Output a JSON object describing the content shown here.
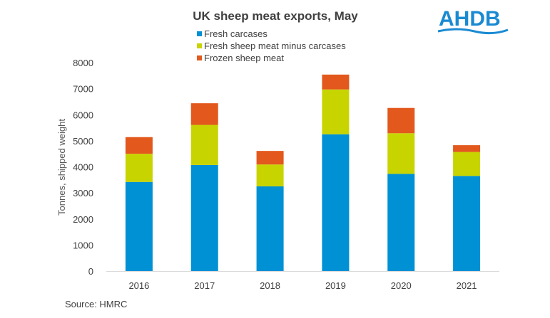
{
  "chart_data": {
    "type": "bar",
    "stacked": true,
    "title": "UK sheep meat exports, May",
    "xlabel": "",
    "ylabel": "Tonnes, shipped weight",
    "ylim": [
      0,
      8000
    ],
    "yticks": [
      0,
      1000,
      2000,
      3000,
      4000,
      5000,
      6000,
      7000,
      8000
    ],
    "grid": false,
    "legend": "top-center",
    "categories": [
      "2016",
      "2017",
      "2018",
      "2019",
      "2020",
      "2021"
    ],
    "series": [
      {
        "name": "Fresh carcases",
        "color": "#0090d4",
        "values": [
          3420,
          4070,
          3250,
          5250,
          3730,
          3650
        ]
      },
      {
        "name": "Fresh sheep meat minus carcases",
        "color": "#c8d400",
        "values": [
          1080,
          1540,
          840,
          1720,
          1560,
          920
        ]
      },
      {
        "name": "Frozen sheep meat",
        "color": "#e2581d",
        "values": [
          640,
          830,
          520,
          570,
          970,
          260
        ]
      }
    ]
  },
  "source": "Source: HMRC",
  "logo": {
    "text": "AHDB",
    "color": "#1a8ad2"
  }
}
